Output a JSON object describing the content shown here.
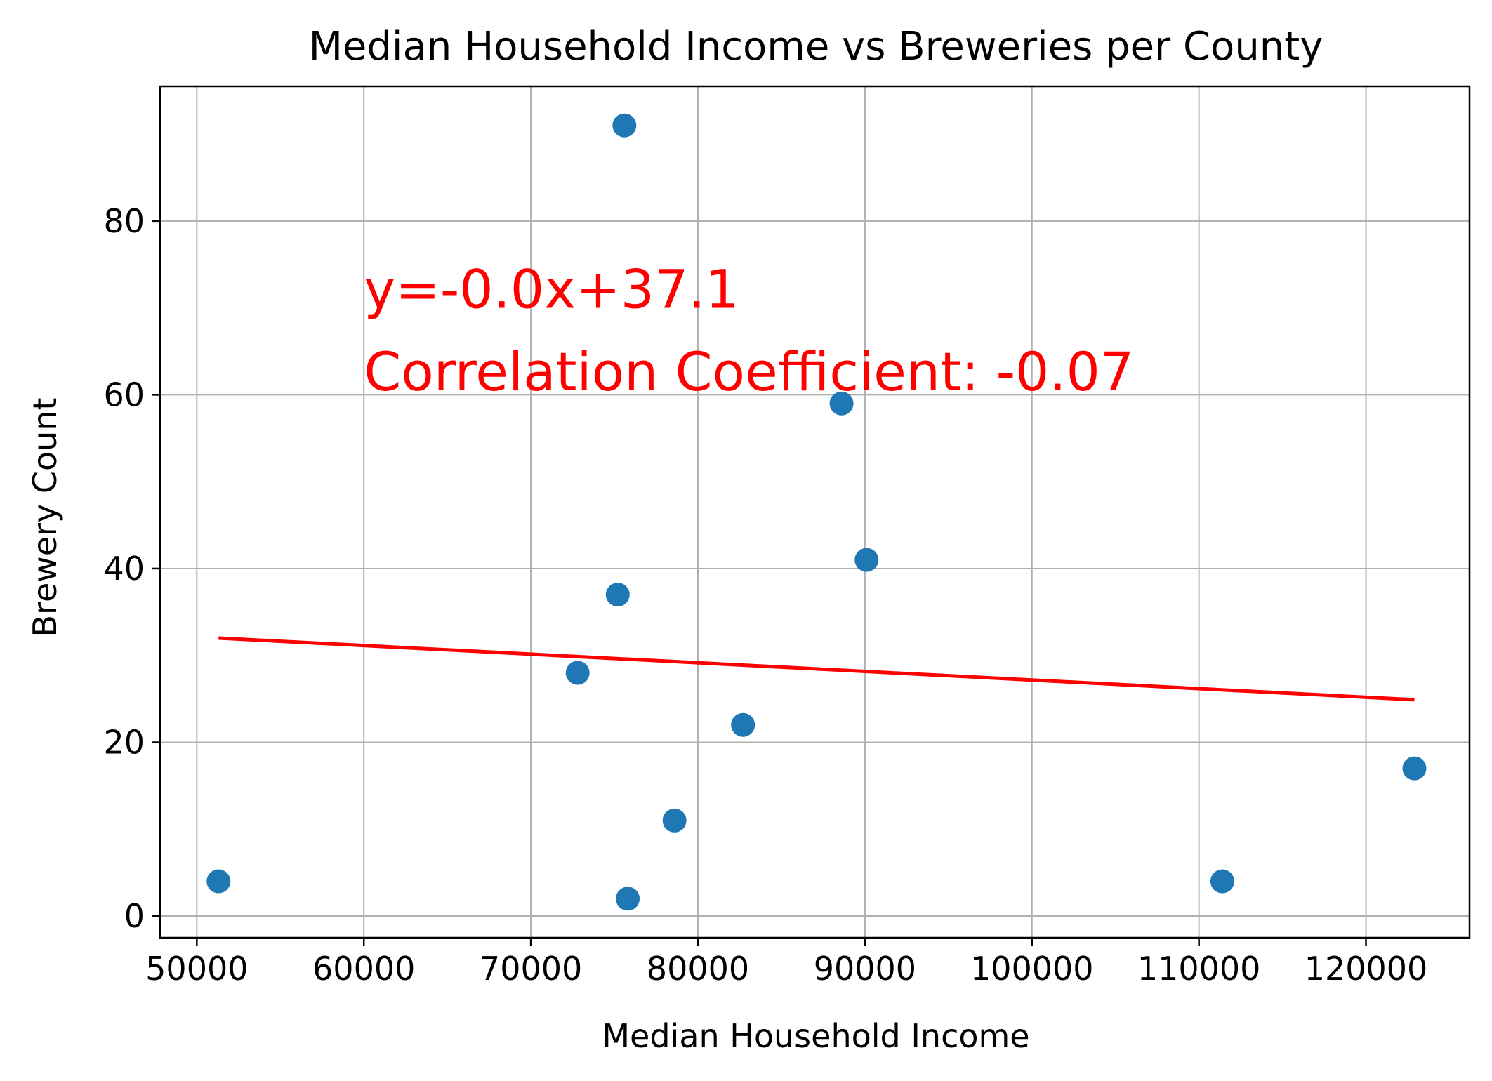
{
  "chart_data": {
    "type": "scatter",
    "title": "Median Household Income vs Breweries per County",
    "xlabel": "Median Household Income",
    "ylabel": "Brewery Count",
    "xlim": [
      47800,
      126200
    ],
    "ylim": [
      -2.5,
      95.5
    ],
    "x_ticks": [
      50000,
      60000,
      70000,
      80000,
      90000,
      100000,
      110000,
      120000
    ],
    "x_tick_labels": [
      "50000",
      "60000",
      "70000",
      "80000",
      "90000",
      "100000",
      "110000",
      "120000"
    ],
    "y_ticks": [
      0,
      20,
      40,
      60,
      80
    ],
    "y_tick_labels": [
      "0",
      "20",
      "40",
      "60",
      "80"
    ],
    "grid": true,
    "points": [
      {
        "x": 51300,
        "y": 4
      },
      {
        "x": 72800,
        "y": 28
      },
      {
        "x": 75200,
        "y": 37
      },
      {
        "x": 75600,
        "y": 91
      },
      {
        "x": 75800,
        "y": 2
      },
      {
        "x": 78600,
        "y": 11
      },
      {
        "x": 82700,
        "y": 22
      },
      {
        "x": 88600,
        "y": 59
      },
      {
        "x": 90100,
        "y": 41
      },
      {
        "x": 111400,
        "y": 4
      },
      {
        "x": 122900,
        "y": 17
      }
    ],
    "regression": {
      "x_start": 51300,
      "y_start": 32.0,
      "x_end": 122900,
      "y_end": 24.9,
      "color": "#ff0000"
    },
    "point_color": "#1f77b4",
    "annotations": [
      {
        "text": "y=-0.0x+37.1",
        "x": 60000,
        "y": 70,
        "color": "#ff0000"
      },
      {
        "text": "Correlation Coefficient: -0.07",
        "x": 60000,
        "y": 60.5,
        "color": "#ff0000"
      }
    ]
  }
}
